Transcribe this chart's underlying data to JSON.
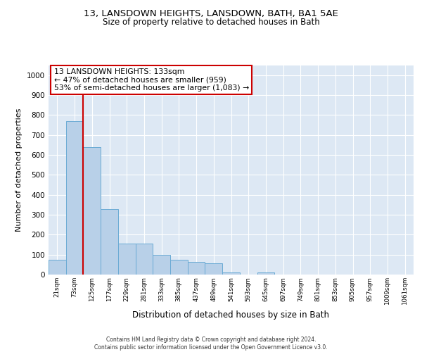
{
  "title_line1": "13, LANSDOWN HEIGHTS, LANSDOWN, BATH, BA1 5AE",
  "title_line2": "Size of property relative to detached houses in Bath",
  "xlabel": "Distribution of detached houses by size in Bath",
  "ylabel": "Number of detached properties",
  "bar_labels": [
    "21sqm",
    "73sqm",
    "125sqm",
    "177sqm",
    "229sqm",
    "281sqm",
    "333sqm",
    "385sqm",
    "437sqm",
    "489sqm",
    "541sqm",
    "593sqm",
    "645sqm",
    "697sqm",
    "749sqm",
    "801sqm",
    "853sqm",
    "905sqm",
    "957sqm",
    "1009sqm",
    "1061sqm"
  ],
  "bar_values": [
    75,
    770,
    640,
    330,
    155,
    155,
    100,
    75,
    65,
    55,
    10,
    0,
    10,
    0,
    0,
    0,
    0,
    0,
    0,
    0,
    0
  ],
  "bar_color": "#b8d0e8",
  "bar_edge_color": "#6aaad4",
  "background_color": "#dde8f4",
  "grid_color": "#ffffff",
  "vline_color": "#cc0000",
  "vline_xindex": 2,
  "annotation_text": "13 LANSDOWN HEIGHTS: 133sqm\n← 47% of detached houses are smaller (959)\n53% of semi-detached houses are larger (1,083) →",
  "annotation_box_color": "#ffffff",
  "annotation_box_edge": "#cc0000",
  "ylim": [
    0,
    1050
  ],
  "yticks": [
    0,
    100,
    200,
    300,
    400,
    500,
    600,
    700,
    800,
    900,
    1000
  ],
  "footer_line1": "Contains HM Land Registry data © Crown copyright and database right 2024.",
  "footer_line2": "Contains public sector information licensed under the Open Government Licence v3.0."
}
